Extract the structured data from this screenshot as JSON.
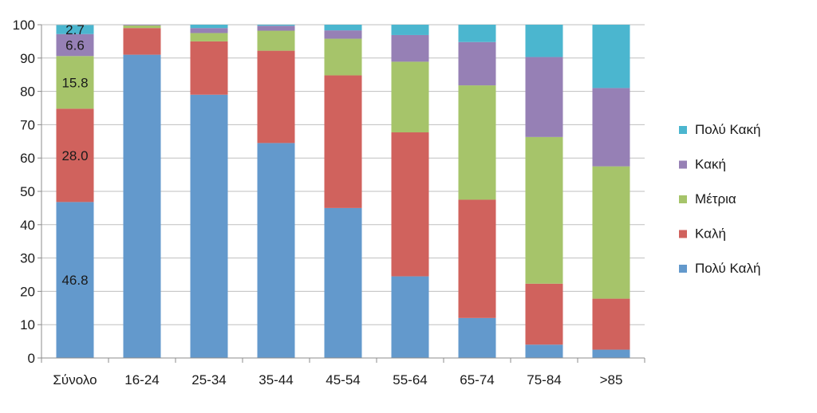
{
  "chart_data": {
    "type": "bar",
    "stacked": true,
    "categories": [
      "Σύνολο",
      "16-24",
      "25-34",
      "35-44",
      "45-54",
      "55-64",
      "65-74",
      "75-84",
      ">85"
    ],
    "series": [
      {
        "name": "Πολύ Καλή",
        "color": "#6399cc",
        "values": [
          46.8,
          91.0,
          79.0,
          64.5,
          45.0,
          24.5,
          12.0,
          4.0,
          2.5
        ]
      },
      {
        "name": "Καλή",
        "color": "#d0625d",
        "values": [
          28.0,
          8.0,
          16.0,
          27.7,
          39.8,
          43.2,
          35.5,
          18.3,
          15.3
        ]
      },
      {
        "name": "Μέτρια",
        "color": "#a6c46a",
        "values": [
          15.8,
          0.8,
          2.5,
          6.0,
          11.0,
          21.2,
          34.3,
          44.0,
          39.7
        ]
      },
      {
        "name": "Κακή",
        "color": "#9680b5",
        "values": [
          6.6,
          0.2,
          1.5,
          1.5,
          2.5,
          8.0,
          13.0,
          24.0,
          23.5
        ]
      },
      {
        "name": "Πολύ Κακή",
        "color": "#4bb6cf",
        "values": [
          2.7,
          0.0,
          1.0,
          0.3,
          1.7,
          3.1,
          5.2,
          9.7,
          19.0
        ]
      }
    ],
    "data_labels": {
      "category": "Σύνολο",
      "values": [
        "46.8",
        "28.0",
        "15.8",
        "6.6",
        "2.7"
      ]
    },
    "ylim": [
      0,
      100
    ],
    "yticks": [
      "0",
      "10",
      "20",
      "30",
      "40",
      "50",
      "60",
      "70",
      "80",
      "90",
      "100"
    ],
    "grid": "horizontal",
    "legend_position": "right",
    "legend_order": [
      "Πολύ Κακή",
      "Κακή",
      "Μέτρια",
      "Καλή",
      "Πολύ Καλή"
    ],
    "title": "",
    "xlabel": "",
    "ylabel": ""
  }
}
